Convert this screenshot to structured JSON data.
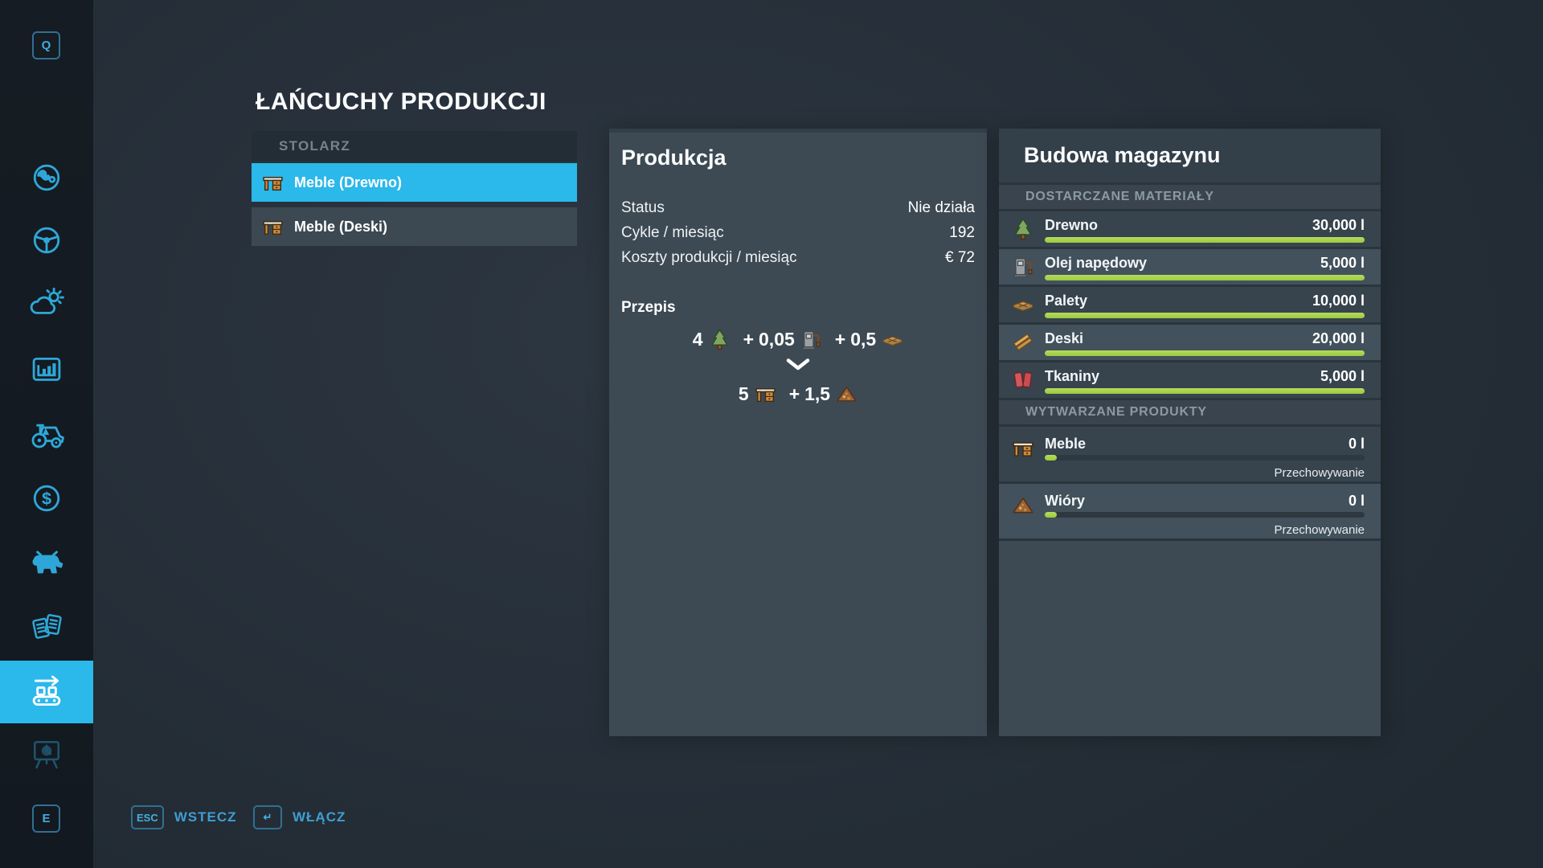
{
  "colors": {
    "accent_cyan": "#2bb8ea",
    "bar_green": "#a7d14d",
    "panel": "#3d4a54",
    "page_bg": "#27303a"
  },
  "page_title": "ŁAŃCUCHY PRODUKCJI",
  "sidebar": {
    "top_key": "Q",
    "bottom_key": "E",
    "items": [
      {
        "name": "map",
        "icon": "globe-icon",
        "active": false,
        "dim": false
      },
      {
        "name": "vehicles",
        "icon": "steering-wheel-icon",
        "active": false,
        "dim": false
      },
      {
        "name": "weather",
        "icon": "weather-icon",
        "active": false,
        "dim": false
      },
      {
        "name": "statistics",
        "icon": "statistics-icon",
        "active": false,
        "dim": false
      },
      {
        "name": "garage",
        "icon": "tractor-icon",
        "active": false,
        "dim": false
      },
      {
        "name": "finances",
        "icon": "dollar-icon",
        "active": false,
        "dim": false
      },
      {
        "name": "animals",
        "icon": "cow-icon",
        "active": false,
        "dim": false
      },
      {
        "name": "contracts",
        "icon": "contracts-icon",
        "active": false,
        "dim": false
      },
      {
        "name": "production-chains",
        "icon": "conveyor-icon",
        "active": true,
        "dim": false
      },
      {
        "name": "overview-board",
        "icon": "easel-icon",
        "active": false,
        "dim": true
      }
    ]
  },
  "chain_list": {
    "header": "STOLARZ",
    "items": [
      {
        "label": "Meble (Drewno)",
        "icon": "furniture-icon",
        "selected": true
      },
      {
        "label": "Meble (Deski)",
        "icon": "furniture-icon",
        "selected": false
      }
    ]
  },
  "production_panel": {
    "title": "Produkcja",
    "stats": [
      {
        "label": "Status",
        "value": "Nie działa"
      },
      {
        "label": "Cykle / miesiąc",
        "value": "192"
      },
      {
        "label": "Koszty produkcji / miesiąc",
        "value": "€ 72"
      }
    ],
    "recipe": {
      "heading": "Przepis",
      "plus": "+",
      "inputs": [
        {
          "qty": "4",
          "icon": "tree-icon"
        },
        {
          "qty": "0,05",
          "icon": "diesel-icon"
        },
        {
          "qty": "0,5",
          "icon": "pallet-icon"
        }
      ],
      "outputs": [
        {
          "qty": "5",
          "icon": "furniture-icon"
        },
        {
          "qty": "1,5",
          "icon": "woodchips-icon"
        }
      ]
    }
  },
  "storage_panel": {
    "title": "Budowa magazynu",
    "sections": [
      {
        "header": "DOSTARCZANE MATERIAŁY",
        "rows": [
          {
            "name": "Drewno",
            "value": "30,000 l",
            "icon": "tree-icon",
            "fill": 100
          },
          {
            "name": "Olej napędowy",
            "value": "5,000 l",
            "icon": "diesel-icon",
            "fill": 100
          },
          {
            "name": "Palety",
            "value": "10,000 l",
            "icon": "pallet-icon",
            "fill": 100
          },
          {
            "name": "Deski",
            "value": "20,000 l",
            "icon": "planks-icon",
            "fill": 100
          },
          {
            "name": "Tkaniny",
            "value": "5,000 l",
            "icon": "fabric-icon",
            "fill": 100
          }
        ]
      },
      {
        "header": "WYTWARZANE PRODUKTY",
        "rows": [
          {
            "name": "Meble",
            "value": "0 l",
            "icon": "furniture-icon",
            "fill": 0,
            "note": "Przechowywanie"
          },
          {
            "name": "Wióry",
            "value": "0 l",
            "icon": "woodchips-icon",
            "fill": 0,
            "note": "Przechowywanie"
          }
        ]
      }
    ]
  },
  "footer": {
    "back": {
      "key": "ESC",
      "label": "WSTECZ"
    },
    "activate": {
      "key": "↵",
      "label": "WŁĄCZ"
    }
  }
}
